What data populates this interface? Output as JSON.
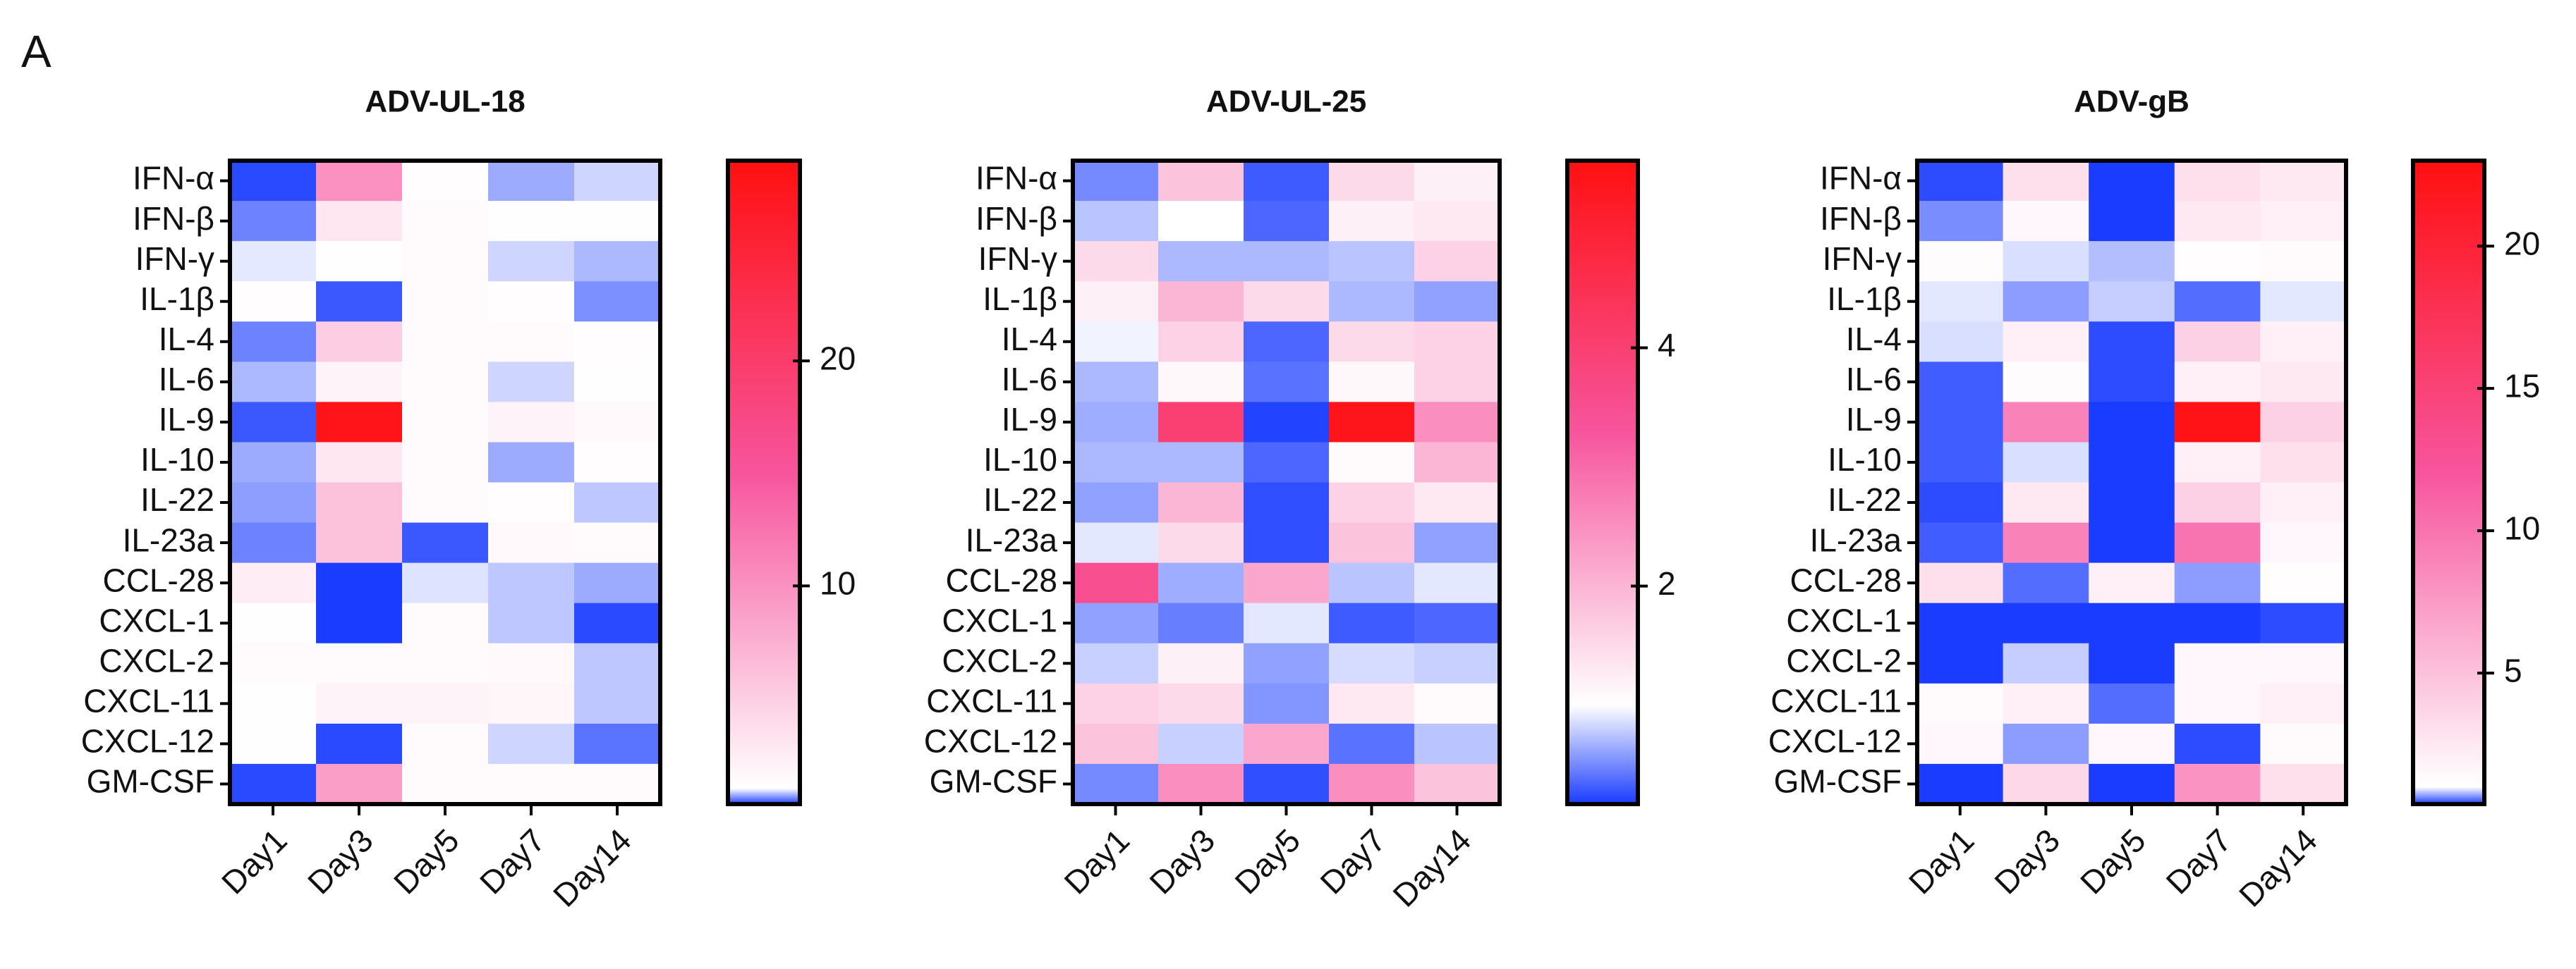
{
  "panel_label": "A",
  "chart_data": [
    {
      "type": "heatmap",
      "title": "ADV-UL-18",
      "x_categories": [
        "Day1",
        "Day3",
        "Day5",
        "Day7",
        "Day14"
      ],
      "y_categories": [
        "IFN-α",
        "IFN-β",
        "IFN-γ",
        "IL-1β",
        "IL-4",
        "IL-6",
        "IL-9",
        "IL-10",
        "IL-22",
        "IL-23a",
        "CCL-28",
        "CXCL-1",
        "CXCL-2",
        "CXCL-11",
        "CXCL-12",
        "GM-CSF"
      ],
      "values": [
        [
          0.35,
          10,
          1.2,
          0.7,
          0.85
        ],
        [
          0.55,
          3,
          1.3,
          1.1,
          1.1
        ],
        [
          0.92,
          1.1,
          1.3,
          0.85,
          0.75
        ],
        [
          1.2,
          0.4,
          1.3,
          1.2,
          0.6
        ],
        [
          0.55,
          5,
          1.4,
          1.3,
          1.2
        ],
        [
          0.75,
          2,
          1.3,
          0.85,
          1.1
        ],
        [
          0.4,
          28,
          1.3,
          2,
          1.5
        ],
        [
          0.7,
          3,
          1.3,
          0.7,
          1.2
        ],
        [
          0.65,
          6,
          1.3,
          1.2,
          0.8
        ],
        [
          0.55,
          6,
          0.4,
          1.5,
          1.3
        ],
        [
          2.5,
          0.3,
          0.9,
          0.8,
          0.7
        ],
        [
          1.1,
          0.3,
          1.3,
          0.8,
          0.35
        ],
        [
          1.3,
          1.3,
          1.4,
          1.5,
          0.8
        ],
        [
          1.1,
          2,
          2,
          1.7,
          0.8
        ],
        [
          1.1,
          0.35,
          1.3,
          0.85,
          0.5
        ],
        [
          0.35,
          9,
          1.3,
          1.3,
          1.3
        ]
      ],
      "zlim": [
        0.3,
        28.9
      ],
      "zcenter": 1,
      "zticks": [
        10,
        20
      ],
      "colors": [
        "#1a3cff",
        "#ffffff",
        "#f7559e",
        "#ff1010"
      ]
    },
    {
      "type": "heatmap",
      "title": "ADV-UL-25",
      "x_categories": [
        "Day1",
        "Day3",
        "Day5",
        "Day7",
        "Day14"
      ],
      "y_categories": [
        "IFN-α",
        "IFN-β",
        "IFN-γ",
        "IL-1β",
        "IL-4",
        "IL-6",
        "IL-9",
        "IL-10",
        "IL-22",
        "IL-23a",
        "CCL-28",
        "CXCL-1",
        "CXCL-2",
        "CXCL-11",
        "CXCL-12",
        "GM-CSF"
      ],
      "values": [
        [
          0.5,
          1.8,
          0.3,
          1.5,
          1.2
        ],
        [
          0.75,
          1,
          0.35,
          1.2,
          1.3
        ],
        [
          1.5,
          0.7,
          0.7,
          0.75,
          1.6
        ],
        [
          1.2,
          2,
          1.5,
          0.7,
          0.6
        ],
        [
          0.95,
          1.6,
          0.35,
          1.5,
          1.6
        ],
        [
          0.7,
          1.1,
          0.4,
          1.1,
          1.6
        ],
        [
          0.65,
          4,
          0.2,
          5.4,
          2.5
        ],
        [
          0.7,
          0.7,
          0.35,
          1.05,
          2
        ],
        [
          0.6,
          2,
          0.25,
          1.6,
          1.3
        ],
        [
          0.9,
          1.5,
          0.25,
          1.8,
          0.6
        ],
        [
          3.5,
          0.65,
          2.2,
          0.75,
          0.9
        ],
        [
          0.6,
          0.45,
          0.9,
          0.3,
          0.35
        ],
        [
          0.8,
          1.2,
          0.6,
          0.85,
          0.8
        ],
        [
          1.6,
          1.5,
          0.55,
          1.3,
          1.05
        ],
        [
          1.8,
          0.8,
          2.2,
          0.4,
          0.75
        ],
        [
          0.5,
          2.5,
          0.25,
          2.5,
          1.8
        ]
      ],
      "zlim": [
        0.17,
        5.57
      ],
      "zcenter": 1,
      "zticks": [
        2,
        4
      ],
      "colors": [
        "#1a3cff",
        "#ffffff",
        "#f7559e",
        "#ff1010"
      ]
    },
    {
      "type": "heatmap",
      "title": "ADV-gB",
      "x_categories": [
        "Day1",
        "Day3",
        "Day5",
        "Day7",
        "Day14"
      ],
      "y_categories": [
        "IFN-α",
        "IFN-β",
        "IFN-γ",
        "IL-1β",
        "IL-4",
        "IL-6",
        "IL-9",
        "IL-10",
        "IL-22",
        "IL-23a",
        "CCL-28",
        "CXCL-1",
        "CXCL-2",
        "CXCL-11",
        "CXCL-12",
        "GM-CSF"
      ],
      "values": [
        [
          0.45,
          3,
          0.35,
          3,
          2.5
        ],
        [
          0.65,
          1.5,
          0.4,
          2.5,
          2
        ],
        [
          1.2,
          0.9,
          0.8,
          1.1,
          1.3
        ],
        [
          0.93,
          0.7,
          0.85,
          0.55,
          0.93
        ],
        [
          0.9,
          2,
          0.45,
          4,
          2
        ],
        [
          0.5,
          1.2,
          0.45,
          2,
          2.5
        ],
        [
          0.5,
          9,
          0.3,
          22.5,
          4
        ],
        [
          0.5,
          0.9,
          0.35,
          2,
          3
        ],
        [
          0.45,
          2.5,
          0.35,
          4,
          2
        ],
        [
          0.5,
          9,
          0.35,
          10,
          1.5
        ],
        [
          3,
          0.55,
          2,
          0.7,
          1.1
        ],
        [
          0.4,
          0.4,
          0.4,
          0.4,
          0.45
        ],
        [
          0.4,
          0.85,
          0.4,
          1.5,
          1.5
        ],
        [
          1.3,
          2,
          0.55,
          1.5,
          2
        ],
        [
          1.5,
          0.7,
          1.5,
          0.45,
          1.3
        ],
        [
          0.4,
          3.5,
          0.35,
          8,
          3
        ]
      ],
      "zlim": [
        0.4,
        23
      ],
      "zcenter": 1,
      "zticks": [
        5,
        10,
        15,
        20
      ],
      "colors": [
        "#1a3cff",
        "#ffffff",
        "#f7559e",
        "#ff1010"
      ]
    }
  ]
}
